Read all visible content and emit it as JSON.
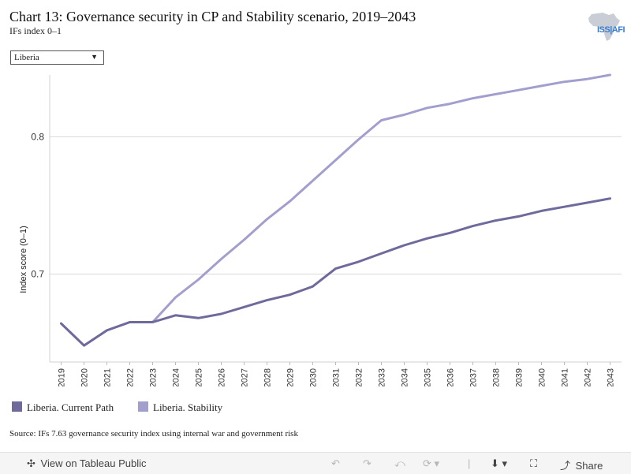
{
  "title": "Chart 13: Governance security in CP and Stability scenario, 2019–2043",
  "subtitle": "IFs index 0–1",
  "logo": {
    "text": "ISS|AFI",
    "icon": "africa-map-icon"
  },
  "filter": {
    "selected": "Liberia"
  },
  "source": "Source: IFs 7.63 governance security index using internal war and government risk",
  "toolbar": {
    "view_label": "View on Tableau Public",
    "share_label": "Share",
    "icons": [
      "tableau-icon",
      "undo-icon",
      "redo-icon",
      "revert-icon",
      "refresh-icon",
      "download-icon",
      "fullscreen-icon",
      "share-icon"
    ]
  },
  "chart_data": {
    "type": "line",
    "ylabel": "Index score (0–1)",
    "xlabel": "",
    "x": [
      2019,
      2020,
      2021,
      2022,
      2023,
      2024,
      2025,
      2026,
      2027,
      2028,
      2029,
      2030,
      2031,
      2032,
      2033,
      2034,
      2035,
      2036,
      2037,
      2038,
      2039,
      2040,
      2041,
      2042,
      2043
    ],
    "ylim": [
      0.636,
      0.845
    ],
    "yticks": [
      0.7,
      0.8
    ],
    "ytick_labels": [
      "0.7",
      "0.8"
    ],
    "grid": true,
    "legend_position": "bottom-left",
    "series": [
      {
        "name": "Liberia. Current Path",
        "color": "#6e6a9b",
        "values": [
          0.664,
          0.648,
          0.659,
          0.665,
          0.665,
          0.67,
          0.668,
          0.671,
          0.676,
          0.681,
          0.685,
          0.691,
          0.704,
          0.709,
          0.715,
          0.721,
          0.726,
          0.73,
          0.735,
          0.739,
          0.742,
          0.746,
          0.749,
          0.752,
          0.755
        ]
      },
      {
        "name": "Liberia. Stability",
        "color": "#a29fcf",
        "values": [
          0.664,
          0.648,
          0.659,
          0.665,
          0.665,
          0.683,
          0.696,
          0.711,
          0.725,
          0.74,
          0.753,
          0.768,
          0.783,
          0.798,
          0.812,
          0.816,
          0.821,
          0.824,
          0.828,
          0.831,
          0.834,
          0.837,
          0.84,
          0.842,
          0.845
        ]
      }
    ]
  }
}
